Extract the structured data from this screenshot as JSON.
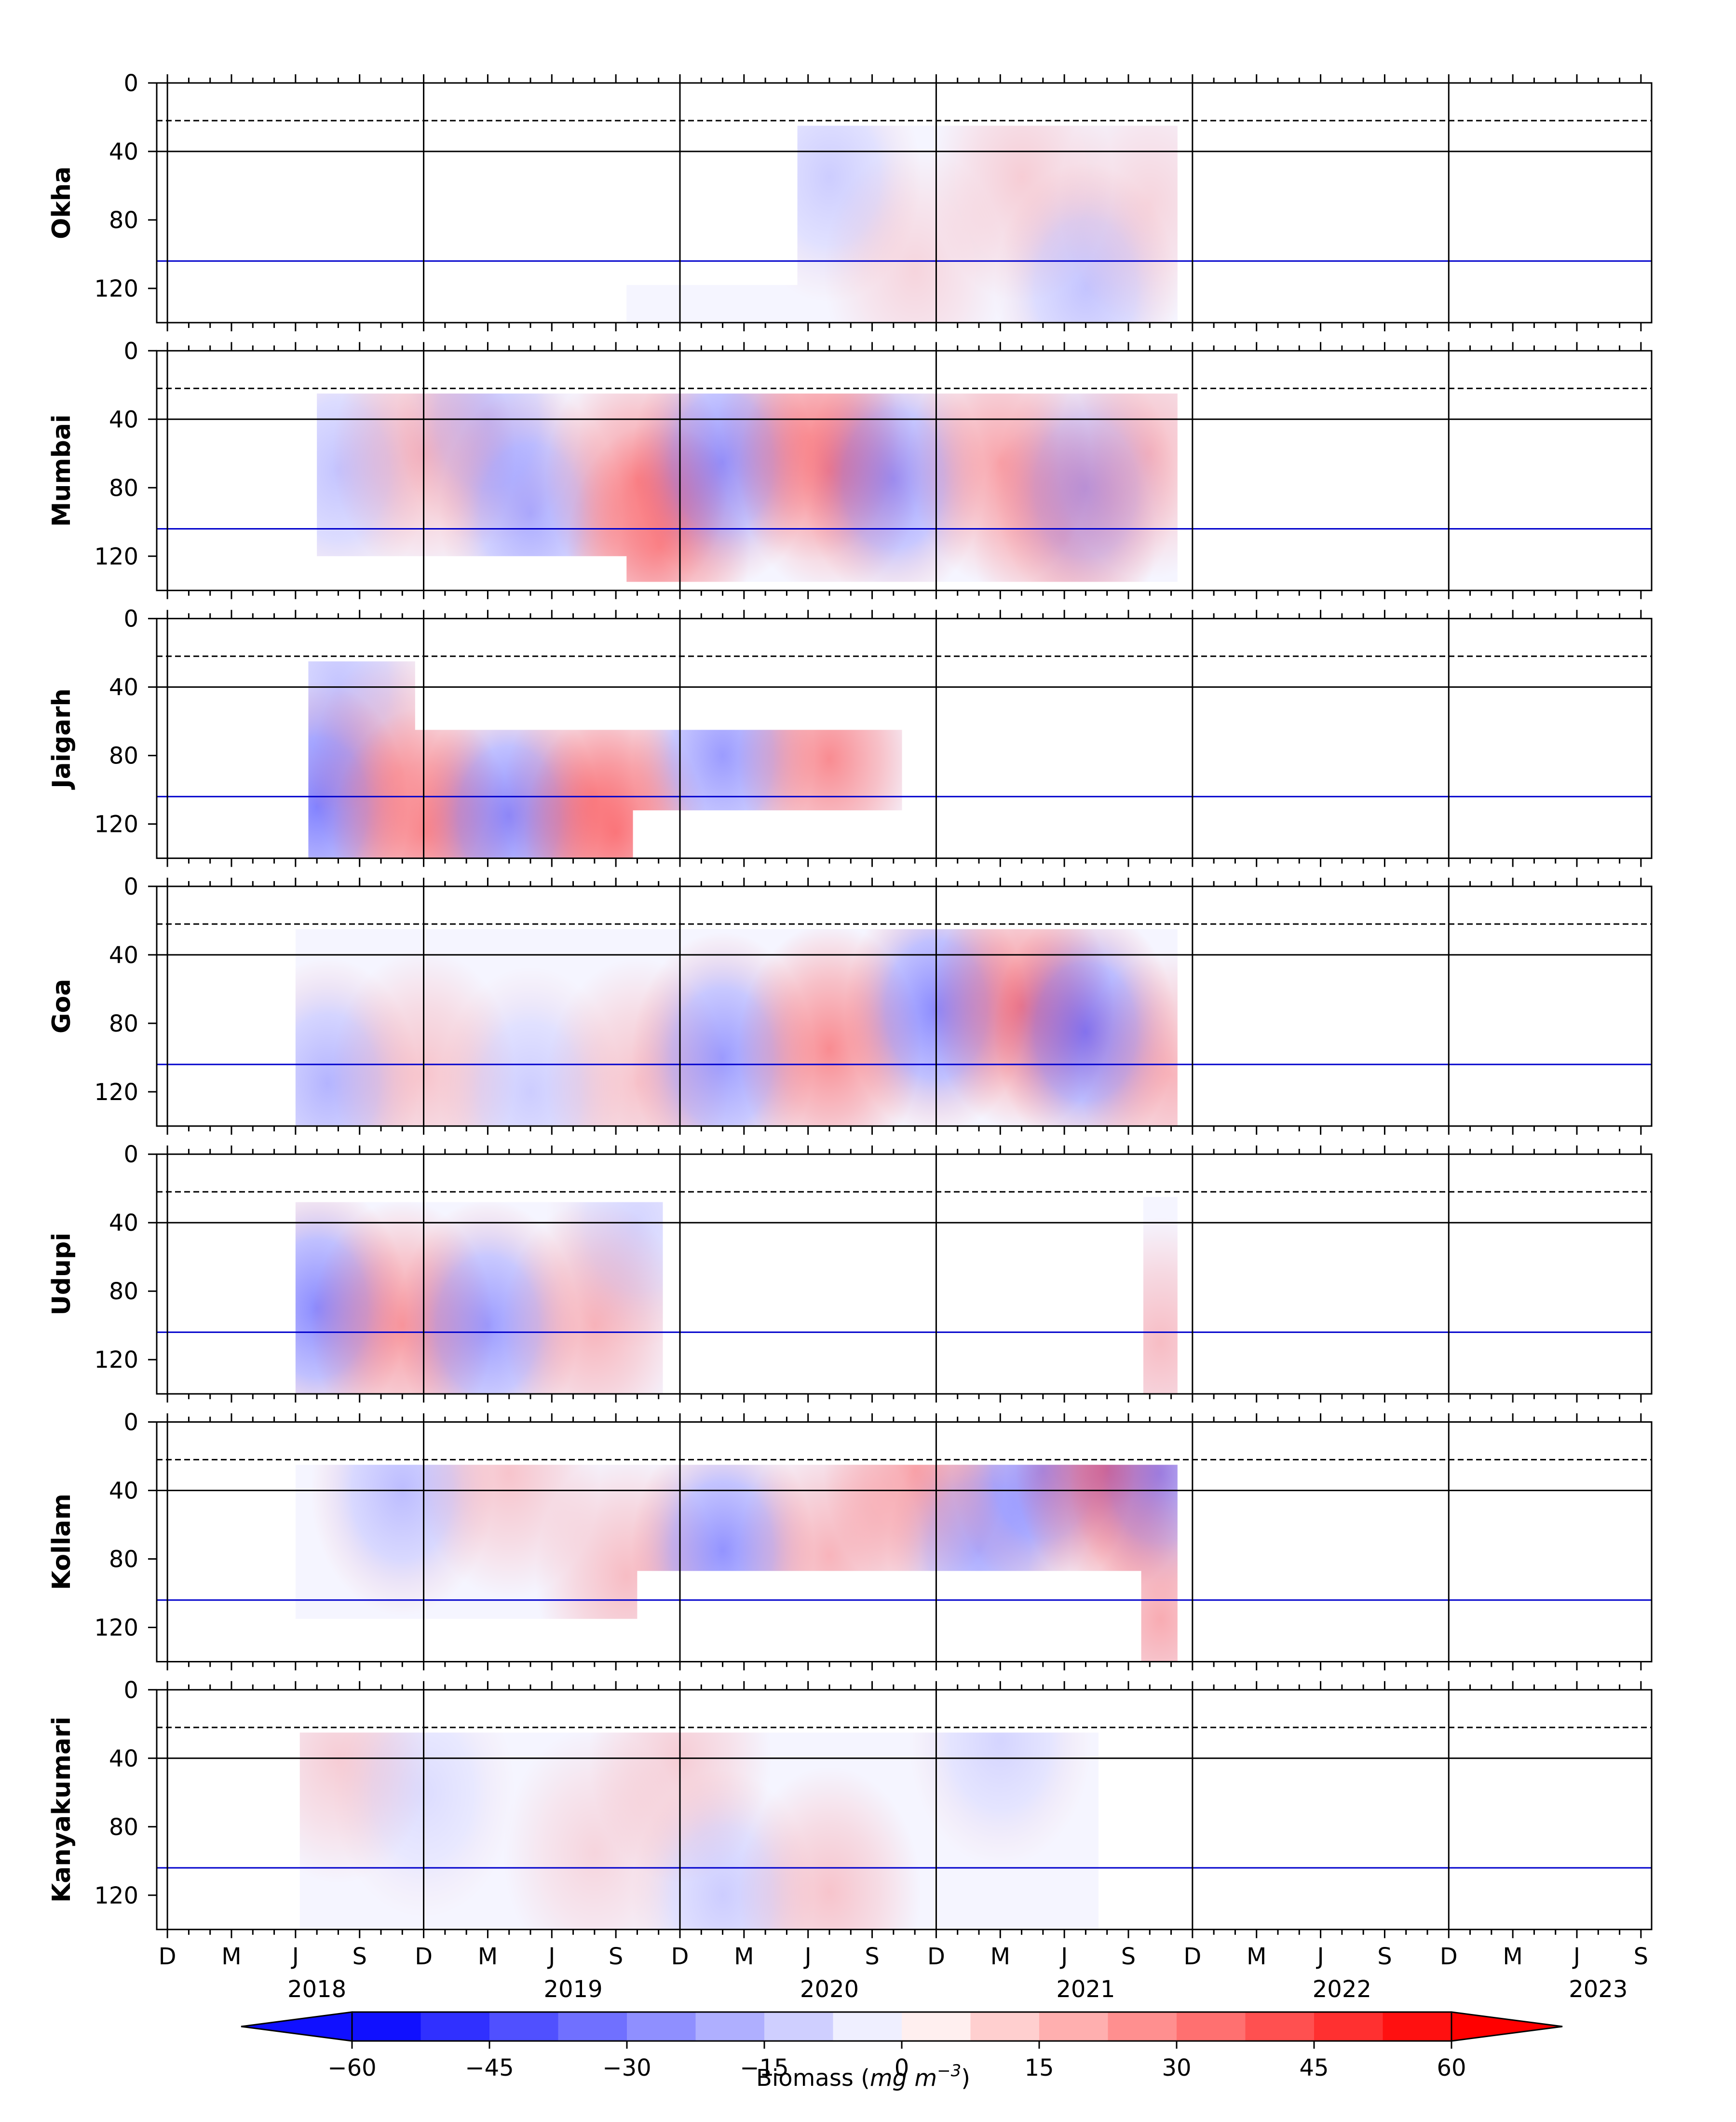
{
  "chart_data": {
    "type": "heatmap",
    "title": "",
    "value_label": "Biomass (mg m⁻³)",
    "colorbar": {
      "label_text": "Biomass (",
      "label_units": "mg m",
      "label_exp": "−3",
      "label_close": ")",
      "vmin": -60,
      "vmax": 60,
      "step": 7.5,
      "ticks": [
        -60,
        -45,
        -30,
        -15,
        0,
        15,
        30,
        45,
        60
      ],
      "tick_labels": [
        "−60",
        "−45",
        "−30",
        "−15",
        "0",
        "15",
        "30",
        "45",
        "60"
      ],
      "extend": "both",
      "colormap": "bwr"
    },
    "x_axis": {
      "start": "2017-12",
      "end": "2023-10",
      "month_ticks": [
        "D",
        "M",
        "J",
        "S",
        "D",
        "M",
        "J",
        "S",
        "D",
        "M",
        "J",
        "S",
        "D",
        "M",
        "J",
        "S",
        "D",
        "M",
        "J",
        "S",
        "D",
        "M",
        "J",
        "S"
      ],
      "year_labels": [
        "2018",
        "2019",
        "2020",
        "2021",
        "2022",
        "2023"
      ],
      "december_lines": [
        "2017-12",
        "2018-12",
        "2019-12",
        "2020-12",
        "2021-12",
        "2022-12"
      ]
    },
    "y_axis": {
      "invert": true,
      "ylim": [
        0,
        140
      ],
      "ticks": [
        0,
        40,
        80,
        120
      ],
      "tick_labels": [
        "0",
        "40",
        "80",
        "120"
      ]
    },
    "reference_lines": [
      {
        "depth": 22,
        "style": "dashed",
        "color": "#000000"
      },
      {
        "depth": 40,
        "style": "solid",
        "color": "#000000"
      },
      {
        "depth": 104,
        "style": "solid",
        "color": "#0000cc"
      }
    ],
    "panels": [
      {
        "station": "Okha",
        "coverage": [
          {
            "t0": 21.5,
            "t1": 29.5,
            "d0": 118,
            "d1": 140
          },
          {
            "t0": 29.5,
            "t1": 47.3,
            "d0": 25,
            "d1": 140
          }
        ],
        "anomalies": [
          {
            "t": 31,
            "d": 55,
            "v": -10
          },
          {
            "t": 35,
            "d": 110,
            "v": 8
          },
          {
            "t": 40,
            "d": 55,
            "v": 10
          },
          {
            "t": 43,
            "d": 120,
            "v": -12
          },
          {
            "t": 46,
            "d": 70,
            "v": 8
          }
        ]
      },
      {
        "station": "Mumbai",
        "coverage": [
          {
            "t0": 7,
            "t1": 21.5,
            "d0": 25,
            "d1": 120
          },
          {
            "t0": 21.5,
            "t1": 47.3,
            "d0": 25,
            "d1": 135
          }
        ],
        "anomalies": [
          {
            "t": 8,
            "d": 70,
            "v": -12
          },
          {
            "t": 12,
            "d": 60,
            "v": 14
          },
          {
            "t": 15,
            "d": 40,
            "v": -12
          },
          {
            "t": 17,
            "d": 95,
            "v": -18
          },
          {
            "t": 22,
            "d": 75,
            "v": 22
          },
          {
            "t": 23,
            "d": 115,
            "v": 22
          },
          {
            "t": 26,
            "d": 65,
            "v": -24
          },
          {
            "t": 30,
            "d": 50,
            "v": 15
          },
          {
            "t": 31,
            "d": 70,
            "v": 20
          },
          {
            "t": 34,
            "d": 75,
            "v": -22
          },
          {
            "t": 39,
            "d": 65,
            "v": 20
          },
          {
            "t": 42,
            "d": 110,
            "v": 14
          },
          {
            "t": 43,
            "d": 80,
            "v": -16
          },
          {
            "t": 46,
            "d": 60,
            "v": 14
          }
        ]
      },
      {
        "station": "Jaigarh",
        "coverage": [
          {
            "t0": 6.6,
            "t1": 11.6,
            "d0": 25,
            "d1": 140
          },
          {
            "t0": 11.6,
            "t1": 21.8,
            "d0": 65,
            "d1": 140
          },
          {
            "t0": 21.8,
            "t1": 34.4,
            "d0": 65,
            "d1": 112
          }
        ],
        "anomalies": [
          {
            "t": 7,
            "d": 110,
            "v": -28
          },
          {
            "t": 8,
            "d": 40,
            "v": -12
          },
          {
            "t": 11,
            "d": 90,
            "v": 14
          },
          {
            "t": 12,
            "d": 125,
            "v": 22
          },
          {
            "t": 16,
            "d": 115,
            "v": -26
          },
          {
            "t": 20,
            "d": 105,
            "v": 18
          },
          {
            "t": 21,
            "d": 125,
            "v": 24
          },
          {
            "t": 26,
            "d": 80,
            "v": -22
          },
          {
            "t": 31,
            "d": 82,
            "v": 26
          }
        ]
      },
      {
        "station": "Goa",
        "coverage": [
          {
            "t0": 6,
            "t1": 47.3,
            "d0": 25,
            "d1": 140
          }
        ],
        "anomalies": [
          {
            "t": 7.5,
            "d": 115,
            "v": -16
          },
          {
            "t": 12,
            "d": 110,
            "v": 12
          },
          {
            "t": 17,
            "d": 120,
            "v": -10
          },
          {
            "t": 22,
            "d": 115,
            "v": 12
          },
          {
            "t": 26,
            "d": 100,
            "v": -22
          },
          {
            "t": 31,
            "d": 95,
            "v": 26
          },
          {
            "t": 36,
            "d": 72,
            "v": -26
          },
          {
            "t": 40,
            "d": 70,
            "v": 26
          },
          {
            "t": 43,
            "d": 85,
            "v": -28
          },
          {
            "t": 47,
            "d": 110,
            "v": 16
          }
        ]
      },
      {
        "station": "Udupi",
        "coverage": [
          {
            "t0": 6,
            "t1": 23,
            "d0": 28,
            "d1": 140
          },
          {
            "t0": 23,
            "t1": 23.2,
            "d0": 28,
            "d1": 140
          },
          {
            "t0": 45.7,
            "t1": 47.3,
            "d0": 25,
            "d1": 140
          }
        ],
        "anomalies": [
          {
            "t": 7,
            "d": 90,
            "v": -26
          },
          {
            "t": 11,
            "d": 100,
            "v": 22
          },
          {
            "t": 15,
            "d": 100,
            "v": -22
          },
          {
            "t": 20,
            "d": 100,
            "v": 16
          },
          {
            "t": 22,
            "d": 40,
            "v": -8
          },
          {
            "t": 46.5,
            "d": 110,
            "v": 14
          }
        ]
      },
      {
        "station": "Kollam",
        "coverage": [
          {
            "t0": 6,
            "t1": 22,
            "d0": 25,
            "d1": 115
          },
          {
            "t0": 22,
            "t1": 40,
            "d0": 25,
            "d1": 87
          },
          {
            "t0": 40,
            "t1": 47.3,
            "d0": 25,
            "d1": 87
          },
          {
            "t0": 45.6,
            "t1": 47.3,
            "d0": 87,
            "d1": 140
          }
        ],
        "anomalies": [
          {
            "t": 11,
            "d": 40,
            "v": -14
          },
          {
            "t": 16,
            "d": 30,
            "v": 12
          },
          {
            "t": 21.5,
            "d": 90,
            "v": 14
          },
          {
            "t": 26,
            "d": 75,
            "v": -24
          },
          {
            "t": 31,
            "d": 78,
            "v": 16
          },
          {
            "t": 35,
            "d": 28,
            "v": 20
          },
          {
            "t": 38,
            "d": 75,
            "v": -18
          },
          {
            "t": 41,
            "d": 28,
            "v": -22
          },
          {
            "t": 44,
            "d": 28,
            "v": 26
          },
          {
            "t": 46.5,
            "d": 30,
            "v": -22
          },
          {
            "t": 46.5,
            "d": 115,
            "v": 18
          }
        ]
      },
      {
        "station": "Kanyakumari",
        "coverage": [
          {
            "t0": 6.2,
            "t1": 43.6,
            "d0": 25,
            "d1": 140
          }
        ],
        "anomalies": [
          {
            "t": 8,
            "d": 40,
            "v": 10
          },
          {
            "t": 12,
            "d": 60,
            "v": -6
          },
          {
            "t": 20,
            "d": 95,
            "v": 8
          },
          {
            "t": 24,
            "d": 40,
            "v": 10
          },
          {
            "t": 26,
            "d": 120,
            "v": -10
          },
          {
            "t": 31,
            "d": 118,
            "v": 12
          },
          {
            "t": 39,
            "d": 30,
            "v": -8
          }
        ]
      }
    ]
  }
}
